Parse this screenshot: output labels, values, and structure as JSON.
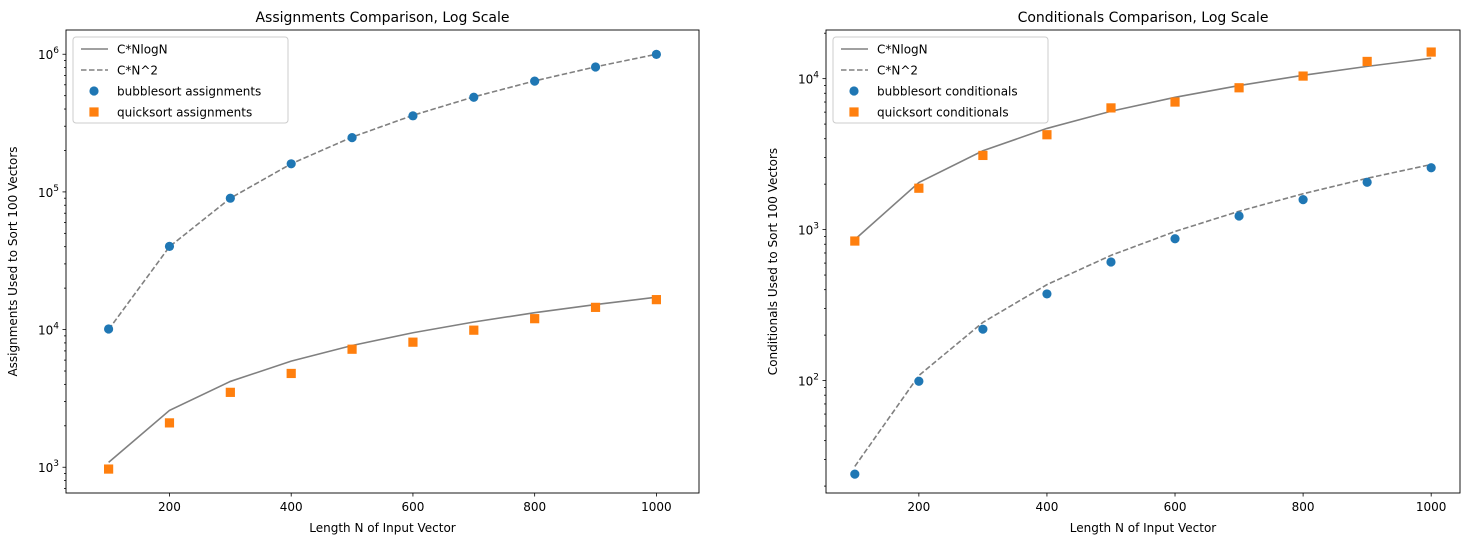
{
  "chart_data": [
    {
      "type": "scatter",
      "title": "Assignments Comparison, Log Scale",
      "xlabel": "Length N of Input Vector",
      "ylabel": "Assignments Used to Sort 100 Vectors",
      "xlim": [
        30,
        1070
      ],
      "ylim": [
        650,
        1500000
      ],
      "yscale": "log",
      "xticks": [
        200,
        400,
        600,
        800,
        1000
      ],
      "yticks": [
        1000,
        10000,
        100000,
        1000000
      ],
      "ytick_labels": [
        {
          "base": "10",
          "exp": "3"
        },
        {
          "base": "10",
          "exp": "4"
        },
        {
          "base": "10",
          "exp": "5"
        },
        {
          "base": "10",
          "exp": "6"
        }
      ],
      "legend_position": "upper left",
      "x": [
        100,
        200,
        300,
        400,
        500,
        600,
        700,
        800,
        900,
        1000
      ],
      "series": [
        {
          "name": "C*NlogN",
          "kind": "line",
          "style": "solid",
          "color": "#808080",
          "x": [
            100,
            200,
            300,
            400,
            500,
            600,
            700,
            800,
            900,
            1000
          ],
          "values": [
            1085,
            2587,
            4201,
            5900,
            7665,
            9487,
            11354,
            13263,
            15207,
            17184
          ]
        },
        {
          "name": "C*N^2",
          "kind": "line",
          "style": "dashed",
          "color": "#808080",
          "x": [
            100,
            200,
            300,
            400,
            500,
            600,
            700,
            800,
            900,
            1000
          ],
          "values": [
            10000,
            40000,
            90000,
            160000,
            250000,
            360000,
            490000,
            640000,
            810000,
            1000000
          ]
        },
        {
          "name": "bubblesort assignments",
          "kind": "marker",
          "marker": "circle",
          "color": "#1f77b4",
          "x": [
            100,
            200,
            300,
            400,
            500,
            600,
            700,
            800,
            900,
            1000
          ],
          "values": [
            10100,
            40200,
            90000,
            160000,
            248000,
            357000,
            487000,
            638000,
            808000,
            998000
          ]
        },
        {
          "name": "quicksort assignments",
          "kind": "marker",
          "marker": "square",
          "color": "#ff7f0e",
          "x": [
            100,
            200,
            300,
            400,
            500,
            600,
            700,
            800,
            900,
            1000
          ],
          "values": [
            970,
            2100,
            3500,
            4800,
            7200,
            8100,
            9900,
            12000,
            14500,
            16500
          ]
        }
      ]
    },
    {
      "type": "scatter",
      "title": "Conditionals Comparison, Log Scale",
      "xlabel": "Length N of Input Vector",
      "ylabel": "Conditionals Used to Sort 100 Vectors",
      "xlim": [
        55,
        1045
      ],
      "ylim": [
        18,
        21000
      ],
      "yscale": "log",
      "xticks": [
        200,
        400,
        600,
        800,
        1000
      ],
      "yticks": [
        100,
        1000,
        10000
      ],
      "ytick_labels": [
        {
          "base": "10",
          "exp": "2"
        },
        {
          "base": "10",
          "exp": "3"
        },
        {
          "base": "10",
          "exp": "4"
        }
      ],
      "legend_position": "upper left",
      "x": [
        100,
        200,
        300,
        400,
        500,
        600,
        700,
        800,
        900,
        1000
      ],
      "series": [
        {
          "name": "C*NlogN",
          "kind": "line",
          "style": "solid",
          "color": "#808080",
          "x": [
            100,
            200,
            300,
            400,
            500,
            600,
            700,
            800,
            900,
            1000
          ],
          "values": [
            860,
            2050,
            3330,
            4680,
            6080,
            7520,
            9000,
            10520,
            12060,
            13630
          ]
        },
        {
          "name": "C*N^2",
          "kind": "line",
          "style": "dashed",
          "color": "#808080",
          "x": [
            100,
            200,
            300,
            400,
            500,
            600,
            700,
            800,
            900,
            1000
          ],
          "values": [
            27,
            108,
            243,
            432,
            675,
            972,
            1323,
            1728,
            2187,
            2700
          ]
        },
        {
          "name": "bubblesort conditionals",
          "kind": "marker",
          "marker": "circle",
          "color": "#1f77b4",
          "x": [
            100,
            200,
            300,
            400,
            500,
            600,
            700,
            800,
            900,
            1000
          ],
          "values": [
            24,
            99,
            219,
            375,
            610,
            870,
            1230,
            1580,
            2060,
            2570
          ]
        },
        {
          "name": "quicksort conditionals",
          "kind": "marker",
          "marker": "square",
          "color": "#ff7f0e",
          "x": [
            100,
            200,
            300,
            400,
            500,
            600,
            700,
            800,
            900,
            1000
          ],
          "values": [
            840,
            1880,
            3100,
            4250,
            6400,
            7000,
            8700,
            10400,
            13000,
            15000
          ]
        }
      ]
    }
  ]
}
